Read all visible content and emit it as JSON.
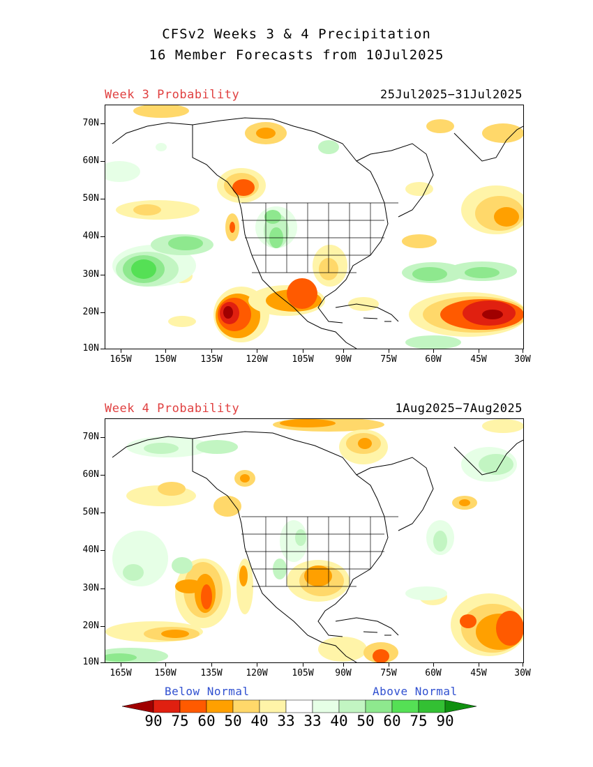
{
  "title": {
    "line1": "CFSv2 Weeks 3 & 4 Precipitation",
    "line2": "16 Member Forecasts from 10Jul2025"
  },
  "panels": [
    {
      "label": "Week 3 Probability",
      "dates": "25Jul2025−31Jul2025"
    },
    {
      "label": "Week 4 Probability",
      "dates": "1Aug2025−7Aug2025"
    }
  ],
  "axes": {
    "lat_labels": [
      "70N",
      "60N",
      "50N",
      "40N",
      "30N",
      "20N",
      "10N"
    ],
    "lon_labels": [
      "165W",
      "150W",
      "135W",
      "120W",
      "105W",
      "90W",
      "75W",
      "60W",
      "45W",
      "30W"
    ]
  },
  "legend": {
    "below_label": "Below Normal",
    "above_label": "Above Normal",
    "values": [
      "90",
      "75",
      "60",
      "50",
      "40",
      "33",
      "33",
      "40",
      "50",
      "60",
      "75",
      "90"
    ],
    "colors_below": [
      "#a00000",
      "#e02010",
      "#ff5a00",
      "#ffa000",
      "#ffd86a",
      "#fff4a8"
    ],
    "colors_above": [
      "#e6ffe6",
      "#c2f5c2",
      "#8ee88e",
      "#55e055",
      "#33c033",
      "#109010"
    ]
  }
}
